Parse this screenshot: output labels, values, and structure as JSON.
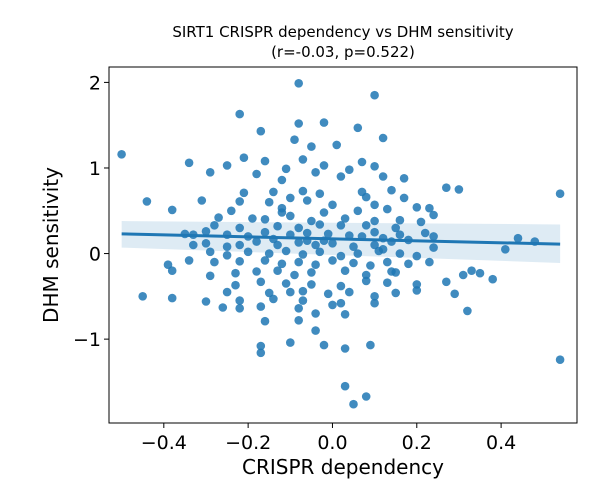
{
  "chart_data": {
    "type": "scatter",
    "title": "SIRT1 CRISPR dependency vs DHM sensitivity",
    "subtitle": "(r=-0.03, p=0.522)",
    "xlabel": "CRISPR dependency",
    "ylabel": "DHM sensitivity",
    "xlim": [
      -0.53,
      0.58
    ],
    "ylim": [
      -1.98,
      2.18
    ],
    "xticks": [
      -0.4,
      -0.2,
      0.0,
      0.2,
      0.4
    ],
    "xtick_labels": [
      "−0.4",
      "−0.2",
      "0.0",
      "0.2",
      "0.4"
    ],
    "yticks": [
      -1,
      0,
      1,
      2
    ],
    "ytick_labels": [
      "−1",
      "0",
      "1",
      "2"
    ],
    "grid": false,
    "point_color": "#1f77b4",
    "regression": {
      "x": [
        -0.5,
        0.54
      ],
      "y": [
        0.23,
        0.11
      ],
      "ci_upper": [
        0.38,
        0.34
      ],
      "ci_lower": [
        0.07,
        -0.11
      ],
      "color": "#1f77b4",
      "band_color": "#1f77b4"
    },
    "points": [
      [
        -0.5,
        1.16
      ],
      [
        -0.44,
        0.61
      ],
      [
        -0.38,
        0.51
      ],
      [
        -0.34,
        1.06
      ],
      [
        -0.45,
        -0.5
      ],
      [
        -0.38,
        -0.52
      ],
      [
        -0.3,
        -0.56
      ],
      [
        -0.22,
        1.63
      ],
      [
        -0.17,
        1.43
      ],
      [
        -0.08,
        1.99
      ],
      [
        0.1,
        1.85
      ],
      [
        -0.08,
        1.52
      ],
      [
        -0.02,
        1.53
      ],
      [
        0.06,
        1.47
      ],
      [
        0.12,
        1.35
      ],
      [
        -0.09,
        1.33
      ],
      [
        -0.05,
        1.25
      ],
      [
        0.01,
        1.27
      ],
      [
        -0.21,
        1.12
      ],
      [
        -0.16,
        1.08
      ],
      [
        -0.25,
        1.03
      ],
      [
        -0.07,
        1.1
      ],
      [
        -0.02,
        1.03
      ],
      [
        0.07,
        1.07
      ],
      [
        0.1,
        1.02
      ],
      [
        0.04,
        0.98
      ],
      [
        -0.11,
        0.99
      ],
      [
        -0.04,
        0.95
      ],
      [
        -0.29,
        0.95
      ],
      [
        -0.18,
        0.93
      ],
      [
        -0.12,
        0.86
      ],
      [
        0.02,
        0.9
      ],
      [
        0.12,
        0.9
      ],
      [
        0.17,
        0.88
      ],
      [
        0.27,
        0.77
      ],
      [
        0.3,
        0.75
      ],
      [
        -0.21,
        0.71
      ],
      [
        -0.14,
        0.72
      ],
      [
        -0.1,
        0.65
      ],
      [
        -0.07,
        0.73
      ],
      [
        -0.03,
        0.7
      ],
      [
        0.07,
        0.72
      ],
      [
        0.14,
        0.74
      ],
      [
        0.08,
        0.66
      ],
      [
        0.17,
        0.65
      ],
      [
        -0.31,
        0.62
      ],
      [
        -0.22,
        0.61
      ],
      [
        -0.15,
        0.6
      ],
      [
        -0.06,
        0.62
      ],
      [
        0.0,
        0.57
      ],
      [
        0.1,
        0.57
      ],
      [
        0.2,
        0.54
      ],
      [
        0.23,
        0.53
      ],
      [
        -0.24,
        0.5
      ],
      [
        -0.12,
        0.53
      ],
      [
        -0.02,
        0.48
      ],
      [
        0.06,
        0.5
      ],
      [
        0.13,
        0.52
      ],
      [
        0.24,
        0.45
      ],
      [
        -0.27,
        0.42
      ],
      [
        -0.19,
        0.41
      ],
      [
        -0.16,
        0.4
      ],
      [
        -0.1,
        0.44
      ],
      [
        -0.05,
        0.38
      ],
      [
        0.03,
        0.41
      ],
      [
        0.1,
        0.38
      ],
      [
        0.16,
        0.39
      ],
      [
        0.21,
        0.37
      ],
      [
        -0.28,
        0.33
      ],
      [
        -0.22,
        0.3
      ],
      [
        -0.13,
        0.32
      ],
      [
        -0.08,
        0.3
      ],
      [
        -0.03,
        0.34
      ],
      [
        0.02,
        0.33
      ],
      [
        0.08,
        0.33
      ],
      [
        0.15,
        0.3
      ],
      [
        -0.35,
        0.23
      ],
      [
        -0.33,
        0.22
      ],
      [
        -0.3,
        0.26
      ],
      [
        -0.25,
        0.22
      ],
      [
        -0.2,
        0.2
      ],
      [
        -0.16,
        0.25
      ],
      [
        -0.1,
        0.22
      ],
      [
        -0.06,
        0.24
      ],
      [
        -0.01,
        0.23
      ],
      [
        0.04,
        0.21
      ],
      [
        0.1,
        0.25
      ],
      [
        0.16,
        0.22
      ],
      [
        0.22,
        0.24
      ],
      [
        0.24,
        0.2
      ],
      [
        -0.33,
        0.1
      ],
      [
        -0.3,
        0.12
      ],
      [
        -0.25,
        0.08
      ],
      [
        -0.22,
        0.1
      ],
      [
        -0.18,
        0.14
      ],
      [
        -0.13,
        0.1
      ],
      [
        -0.08,
        0.13
      ],
      [
        -0.04,
        0.1
      ],
      [
        0.0,
        0.12
      ],
      [
        0.05,
        0.08
      ],
      [
        0.1,
        0.1
      ],
      [
        0.14,
        0.14
      ],
      [
        0.18,
        0.16
      ],
      [
        0.24,
        0.07
      ],
      [
        -0.29,
        0.02
      ],
      [
        -0.25,
        -0.02
      ],
      [
        -0.2,
        0.02
      ],
      [
        -0.15,
        0.0
      ],
      [
        -0.11,
        0.03
      ],
      [
        -0.07,
        -0.01
      ],
      [
        -0.03,
        0.02
      ],
      [
        0.02,
        -0.03
      ],
      [
        0.06,
        0.0
      ],
      [
        0.11,
        0.03
      ],
      [
        0.16,
        0.0
      ],
      [
        0.2,
        -0.03
      ],
      [
        -0.39,
        -0.13
      ],
      [
        -0.38,
        -0.2
      ],
      [
        -0.34,
        -0.08
      ],
      [
        -0.28,
        -0.1
      ],
      [
        -0.22,
        -0.09
      ],
      [
        -0.16,
        -0.08
      ],
      [
        -0.12,
        -0.12
      ],
      [
        -0.08,
        -0.1
      ],
      [
        -0.04,
        -0.13
      ],
      [
        0.0,
        -0.08
      ],
      [
        0.05,
        -0.11
      ],
      [
        0.09,
        -0.14
      ],
      [
        0.13,
        -0.1
      ],
      [
        0.18,
        -0.12
      ],
      [
        0.23,
        -0.1
      ],
      [
        -0.29,
        -0.26
      ],
      [
        -0.23,
        -0.23
      ],
      [
        -0.18,
        -0.21
      ],
      [
        -0.13,
        -0.2
      ],
      [
        -0.09,
        -0.25
      ],
      [
        -0.05,
        -0.22
      ],
      [
        0.03,
        -0.2
      ],
      [
        0.08,
        -0.25
      ],
      [
        0.14,
        -0.21
      ],
      [
        -0.23,
        -0.37
      ],
      [
        -0.17,
        -0.33
      ],
      [
        -0.11,
        -0.35
      ],
      [
        -0.05,
        -0.36
      ],
      [
        0.02,
        -0.38
      ],
      [
        0.08,
        -0.32
      ],
      [
        0.13,
        -0.34
      ],
      [
        0.2,
        -0.36
      ],
      [
        0.27,
        -0.33
      ],
      [
        0.31,
        -0.25
      ],
      [
        0.38,
        -0.3
      ],
      [
        -0.25,
        -0.45
      ],
      [
        -0.15,
        -0.46
      ],
      [
        -0.1,
        -0.45
      ],
      [
        -0.07,
        -0.44
      ],
      [
        -0.01,
        -0.47
      ],
      [
        0.04,
        -0.45
      ],
      [
        0.1,
        -0.5
      ],
      [
        0.15,
        -0.46
      ],
      [
        0.2,
        -0.43
      ],
      [
        -0.22,
        -0.55
      ],
      [
        -0.14,
        -0.53
      ],
      [
        -0.07,
        -0.55
      ],
      [
        0.0,
        -0.6
      ],
      [
        0.02,
        -0.58
      ],
      [
        0.1,
        -0.58
      ],
      [
        0.29,
        -0.47
      ],
      [
        -0.26,
        -0.63
      ],
      [
        -0.22,
        -0.64
      ],
      [
        -0.17,
        -0.62
      ],
      [
        -0.08,
        -0.64
      ],
      [
        -0.04,
        -0.7
      ],
      [
        0.03,
        -0.71
      ],
      [
        0.32,
        -0.67
      ],
      [
        -0.16,
        -0.79
      ],
      [
        -0.08,
        -0.78
      ],
      [
        -0.04,
        -0.9
      ],
      [
        -0.17,
        -1.08
      ],
      [
        -0.17,
        -1.16
      ],
      [
        -0.1,
        -1.04
      ],
      [
        -0.02,
        -1.07
      ],
      [
        0.03,
        -1.11
      ],
      [
        0.09,
        -1.07
      ],
      [
        0.03,
        -1.55
      ],
      [
        0.05,
        -1.76
      ],
      [
        0.08,
        -1.67
      ],
      [
        0.41,
        0.05
      ],
      [
        0.44,
        0.18
      ],
      [
        0.48,
        0.14
      ],
      [
        0.54,
        0.7
      ],
      [
        0.54,
        -1.24
      ],
      [
        0.35,
        -0.23
      ],
      [
        0.33,
        -0.2
      ],
      [
        0.15,
        -0.22
      ],
      [
        0.12,
        0.05
      ],
      [
        -0.12,
        0.48
      ],
      [
        -0.02,
        0.15
      ],
      [
        -0.06,
        0.15
      ],
      [
        0.07,
        0.2
      ],
      [
        -0.14,
        0.17
      ],
      [
        0.12,
        0.18
      ]
    ]
  }
}
